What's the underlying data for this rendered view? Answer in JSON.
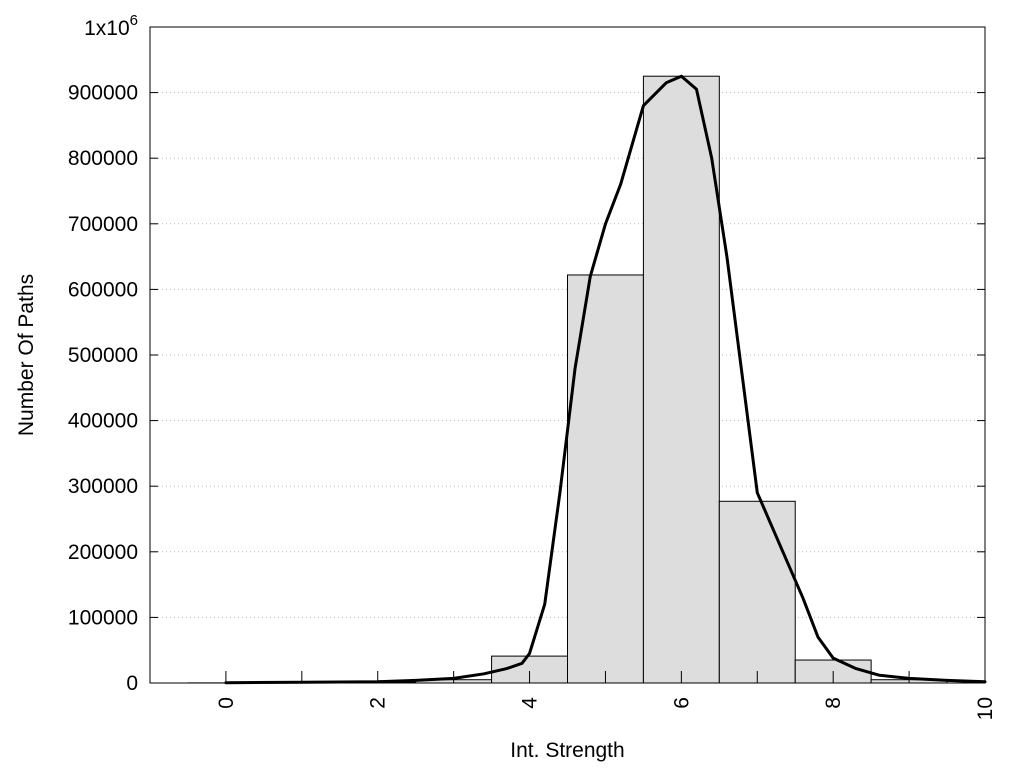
{
  "chart_data": {
    "type": "bar",
    "title": "",
    "xlabel": "Int. Strength",
    "ylabel": "Number Of Paths",
    "xlim": [
      -1,
      10
    ],
    "ylim": [
      0,
      1000000
    ],
    "x_ticks": [
      0,
      2,
      4,
      6,
      8,
      10
    ],
    "y_ticks": [
      0,
      100000,
      200000,
      300000,
      400000,
      500000,
      600000,
      700000,
      800000,
      900000
    ],
    "y_top_label": {
      "base": "1x10",
      "exponent": "6"
    },
    "grid": "horizontal dotted",
    "legend": "none",
    "bar_color": "#dddddd",
    "series": [
      {
        "type": "bar",
        "x": [
          0,
          1,
          2,
          3,
          4,
          5,
          6,
          7,
          8,
          9
        ],
        "values": [
          200,
          500,
          1000,
          5000,
          41000,
          622000,
          925000,
          277000,
          35000,
          5000
        ]
      },
      {
        "type": "line",
        "x": [
          0,
          1,
          2,
          2.5,
          3,
          3.4,
          3.7,
          3.9,
          4.0,
          4.2,
          4.4,
          4.6,
          4.8,
          5.0,
          5.2,
          5.5,
          5.8,
          6.0,
          6.2,
          6.4,
          6.6,
          6.8,
          7.0,
          7.3,
          7.6,
          7.8,
          8.0,
          8.3,
          8.6,
          9.0,
          9.5,
          10.0
        ],
        "values": [
          500,
          1000,
          2000,
          4000,
          7000,
          14000,
          22000,
          30000,
          45000,
          120000,
          290000,
          480000,
          620000,
          700000,
          760000,
          880000,
          915000,
          925000,
          905000,
          800000,
          650000,
          470000,
          290000,
          210000,
          130000,
          70000,
          38000,
          22000,
          12000,
          7000,
          4000,
          2000
        ]
      }
    ]
  }
}
